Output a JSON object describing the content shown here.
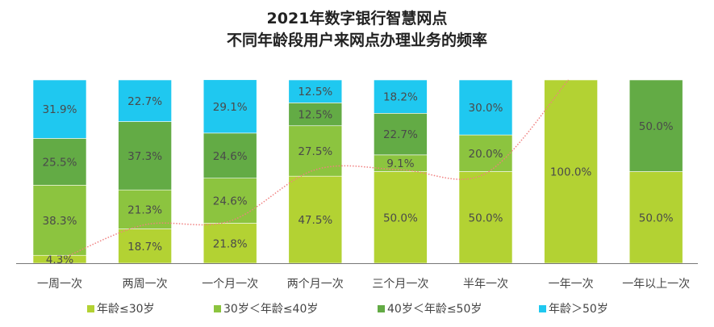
{
  "chart_data": {
    "type": "bar",
    "stacked": true,
    "title": "2021年数字银行智慧网点",
    "subtitle": "不同年龄段用户来网点办理业务的频率",
    "xlabel": "",
    "ylabel": "",
    "ylim": [
      0,
      100
    ],
    "categories": [
      "一周一次",
      "两周一次",
      "一个月一次",
      "两个月一次",
      "三个月一次",
      "半年一次",
      "一年一次",
      "一年以上一次"
    ],
    "series": [
      {
        "name": "年龄≤30岁",
        "color": "#b3d233",
        "values": [
          4.3,
          18.7,
          21.8,
          47.5,
          50.0,
          50.0,
          100.0,
          50.0
        ]
      },
      {
        "name": "30岁＜年龄≤40岁",
        "color": "#8cc43f",
        "values": [
          38.3,
          21.3,
          24.6,
          27.5,
          9.1,
          20.0,
          0,
          0
        ]
      },
      {
        "name": "40岁＜年龄≤50岁",
        "color": "#63ab45",
        "values": [
          25.5,
          37.3,
          24.6,
          12.5,
          22.7,
          0,
          0,
          50.0
        ]
      },
      {
        "name": "年龄＞50岁",
        "color": "#1fc8f0",
        "values": [
          31.9,
          22.7,
          29.1,
          12.5,
          18.2,
          30.0,
          0,
          0
        ]
      }
    ],
    "labels": [
      [
        "4.3%",
        "18.7%",
        "21.8%",
        "47.5%",
        "50.0%",
        "50.0%",
        "100.0%",
        "50.0%"
      ],
      [
        "38.3%",
        "21.3%",
        "24.6%",
        "27.5%",
        "9.1%",
        "20.0%",
        "",
        ""
      ],
      [
        "25.5%",
        "37.3%",
        "24.6%",
        "12.5%",
        "22.7%",
        "",
        "",
        "50.0%"
      ],
      [
        "31.9%",
        "22.7%",
        "29.1%",
        "12.5%",
        "18.2%",
        "30.0%",
        "",
        ""
      ]
    ],
    "trendline": {
      "color": "#f08080",
      "style": "dotted",
      "values": [
        4.3,
        21,
        23,
        51,
        51,
        49,
        100
      ]
    },
    "legend": "bottom",
    "grid": false
  }
}
